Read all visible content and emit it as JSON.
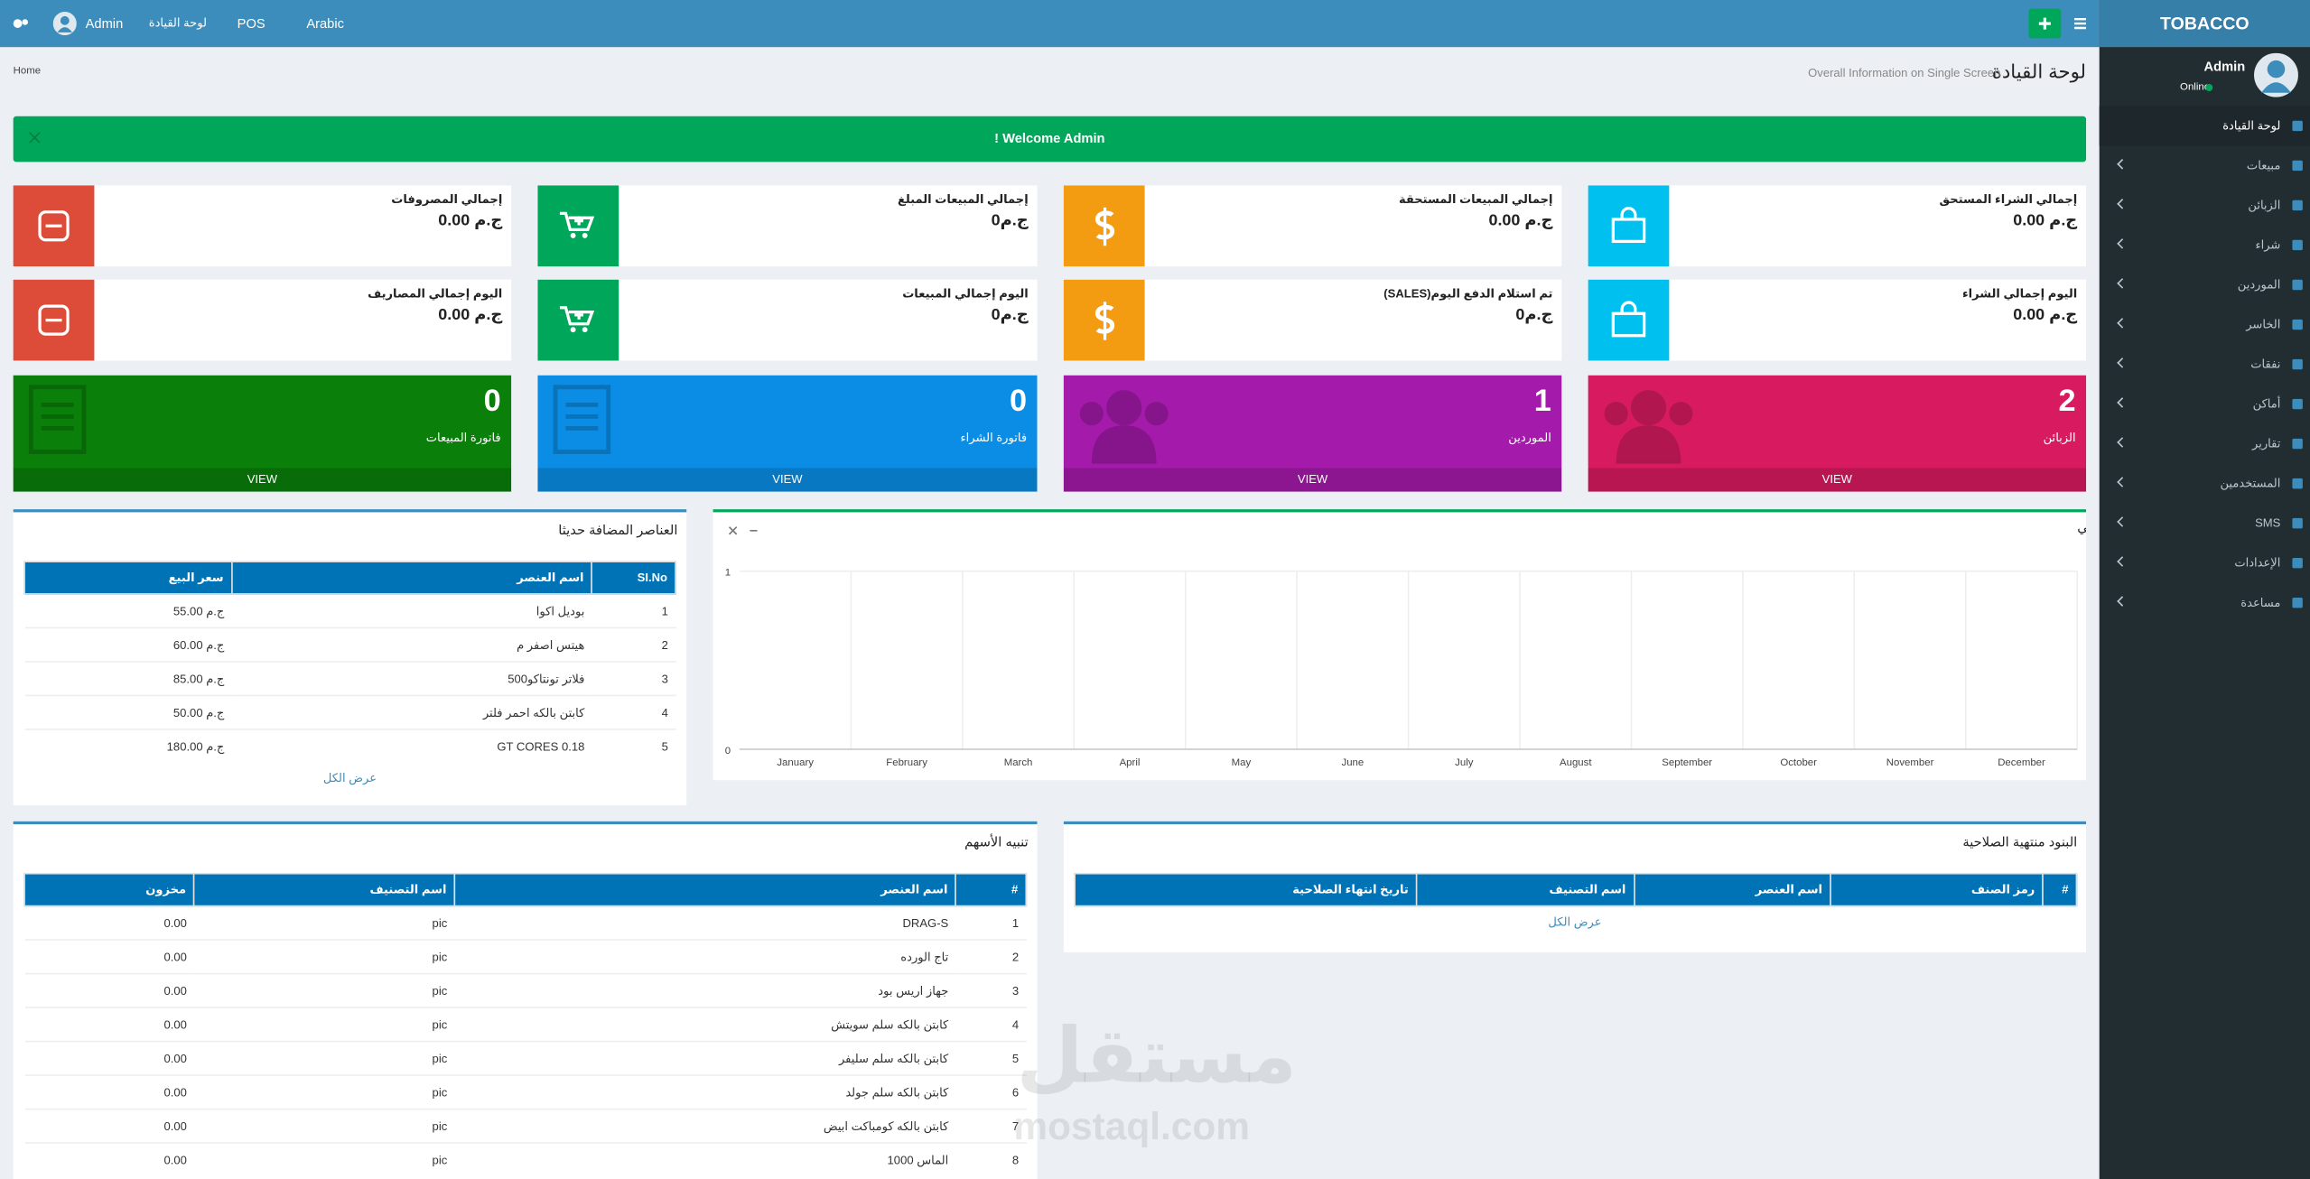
{
  "topbar": {
    "user": "Admin",
    "links": [
      "لوحة القيادة",
      "POS",
      "Arabic"
    ]
  },
  "sidebar": {
    "brand": "TOBACCO",
    "user": "Admin",
    "status": "Online",
    "menu": [
      "لوحة القيادة",
      "مبيعات",
      "الزبائن",
      "شراء",
      "الموردين",
      "الخاسر",
      "نفقات",
      "أماكن",
      "تقارير",
      "المستخدمين",
      "SMS",
      "الإعدادات",
      "مساعدة"
    ]
  },
  "header": {
    "title": "لوحة القيادة",
    "subtitle": "Overall Information on Single Screen",
    "breadcrumb": "Home"
  },
  "alert": "Welcome Admin !",
  "info_boxes": [
    {
      "label": "إجمالي المصروفات",
      "value": "ج.م 0.00",
      "color": "#dd4b39"
    },
    {
      "label": "إجمالي المبيعات المبلغ",
      "value": "ج.م0",
      "color": "#00a65a"
    },
    {
      "label": "إجمالي المبيعات المستحقة",
      "value": "ج.م 0.00",
      "color": "#f39c12"
    },
    {
      "label": "إجمالي الشراء المستحق",
      "value": "ج.م 0.00",
      "color": "#00c0ef"
    },
    {
      "label": "اليوم إجمالي المصاريف",
      "value": "ج.م 0.00",
      "color": "#dd4b39"
    },
    {
      "label": "اليوم إجمالي المبيعات",
      "value": "ج.م0",
      "color": "#00a65a"
    },
    {
      "label": "تم استلام الدفع اليوم(SALES)",
      "value": "ج.م0",
      "color": "#f39c12"
    },
    {
      "label": "اليوم إجمالي الشراء",
      "value": "ج.م 0.00",
      "color": "#00c0ef"
    }
  ],
  "count_boxes": [
    {
      "count": "0",
      "label": "فاتورة المبيعات",
      "color": "#0a800a"
    },
    {
      "count": "0",
      "label": "فاتورة الشراء",
      "color": "#0b8de5"
    },
    {
      "count": "1",
      "label": "الموردين",
      "color": "#a41aaa"
    },
    {
      "count": "2",
      "label": "الزبائن",
      "color": "#d81b60"
    }
  ],
  "view": "VIEW",
  "recent_items": {
    "title": "العناصر المضافة حديثا",
    "columns": [
      "SI.No",
      "اسم العنصر",
      "سعر البيع"
    ],
    "rows": [
      [
        "1",
        "بوديل اكوا",
        "ج.م 55.00"
      ],
      [
        "2",
        "هيتس اصفر م",
        "ج.م 60.00"
      ],
      [
        "3",
        "فلاتر تونتاكو500",
        "ج.م 85.00"
      ],
      [
        "4",
        "كابتن بالكه احمر فلتر",
        "ج.م 50.00"
      ],
      [
        "5",
        "GT CORES 0.18",
        "ج.م 180.00"
      ]
    ],
    "view_all": "عرض الكل"
  },
  "chart_data": {
    "type": "bar",
    "title": "شراء & شريط المبيعات الرسم البياني",
    "categories": [
      "January",
      "February",
      "March",
      "April",
      "May",
      "June",
      "July",
      "August",
      "September",
      "October",
      "November",
      "December"
    ],
    "series": [
      {
        "color": "#00a65a",
        "values": [
          0,
          0,
          0,
          0,
          0,
          0,
          0,
          0,
          0,
          0,
          0,
          0
        ]
      }
    ],
    "ylim": [
      0,
      1
    ],
    "yticks": [
      0,
      1
    ],
    "grid": true
  },
  "stock_alert": {
    "title": "تنبيه الأسهم",
    "columns": [
      "#",
      "اسم العنصر",
      "اسم التصنيف",
      "مخزون"
    ],
    "rows": [
      [
        "1",
        "DRAG-S",
        "pic",
        "0.00"
      ],
      [
        "2",
        "تاج الورده",
        "pic",
        "0.00"
      ],
      [
        "3",
        "جهاز اريس بود",
        "pic",
        "0.00"
      ],
      [
        "4",
        "كابتن بالكه سلم سويتش",
        "pic",
        "0.00"
      ],
      [
        "5",
        "كابتن بالكه سلم سليفر",
        "pic",
        "0.00"
      ],
      [
        "6",
        "كابتن بالكه سلم جولد",
        "pic",
        "0.00"
      ],
      [
        "7",
        "كابتن بالكه كومباكت ابيض",
        "pic",
        "0.00"
      ],
      [
        "8",
        "الماس 1000",
        "pic",
        "0.00"
      ]
    ]
  },
  "expired_items": {
    "title": "البنود منتهية الصلاحية",
    "columns": [
      "#",
      "رمز الصنف",
      "اسم العنصر",
      "اسم التصنيف",
      "تاريخ انتهاء الصلاحية"
    ],
    "view_all": "عرض الكل"
  },
  "watermark": {
    "arabic": "مستقل",
    "latin": "mostaql.com"
  }
}
